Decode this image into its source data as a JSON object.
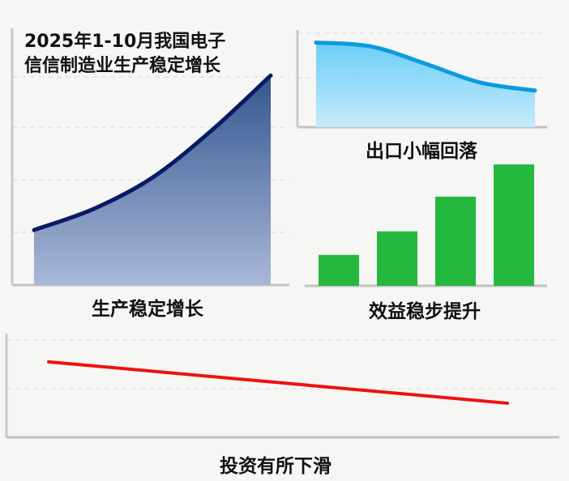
{
  "title_lines": [
    "2025年1-10月我国电子",
    "信信制造业生产稳定增长"
  ],
  "chart_data": [
    {
      "type": "area",
      "label": "生产稳定增长",
      "x": [
        1,
        2,
        3,
        4,
        5
      ],
      "values": [
        1.05,
        1.45,
        2.05,
        2.95,
        4.0
      ],
      "ylim": [
        0,
        4.9
      ],
      "grid": true,
      "colors": {
        "line": "#0b1a66",
        "fill_top": "#34568f",
        "fill_bottom": "#a9b8d8"
      }
    },
    {
      "type": "area",
      "label": "出口小幅回落",
      "x": [
        1,
        2,
        3,
        4,
        5
      ],
      "values": [
        1.8,
        1.72,
        1.35,
        0.95,
        0.78
      ],
      "ylim": [
        0,
        2.07
      ],
      "grid": true,
      "colors": {
        "line": "#0a9be0",
        "fill_top": "#6ccdf7",
        "fill_bottom": "#c6ebfb"
      }
    },
    {
      "type": "bar",
      "label": "效益稳步提升",
      "values": [
        0.25,
        0.44,
        0.72,
        0.98
      ],
      "ylim": [
        0,
        1
      ],
      "grid": false,
      "colors": {
        "bar": "#24b93e"
      }
    },
    {
      "type": "line",
      "label": "投资有所下滑",
      "x": [
        1,
        2
      ],
      "values": [
        1.55,
        0.7
      ],
      "ylim": [
        0,
        2.13
      ],
      "grid": true,
      "colors": {
        "line": "#ee1111"
      }
    }
  ]
}
